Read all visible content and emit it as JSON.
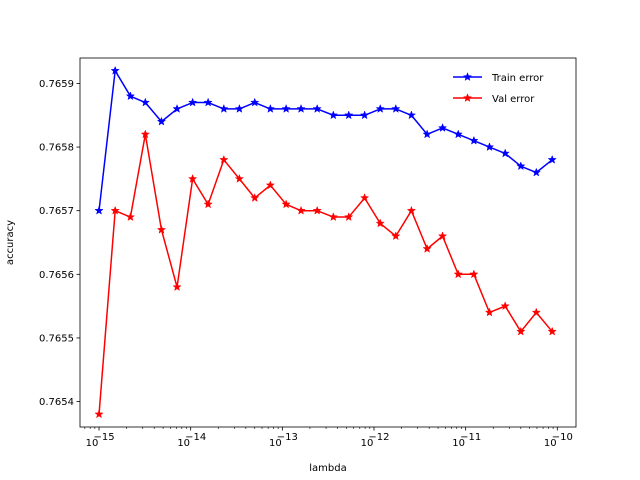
{
  "chart_data": {
    "type": "line",
    "title": "",
    "xlabel": "lambda",
    "ylabel": "accuracy",
    "xscale": "log",
    "xlim": [
      6.2e-16,
      1.6e-10
    ],
    "ylim": [
      0.76536,
      0.76594
    ],
    "xticks": [
      {
        "value": 1e-15,
        "mantissa": "10",
        "exponent": "−15"
      },
      {
        "value": 1e-14,
        "mantissa": "10",
        "exponent": "−14"
      },
      {
        "value": 1e-13,
        "mantissa": "10",
        "exponent": "−13"
      },
      {
        "value": 1e-12,
        "mantissa": "10",
        "exponent": "−12"
      },
      {
        "value": 1e-11,
        "mantissa": "10",
        "exponent": "−11"
      },
      {
        "value": 1e-10,
        "mantissa": "10",
        "exponent": "−10"
      }
    ],
    "yticks": [
      {
        "value": 0.7654,
        "label": "0.7654"
      },
      {
        "value": 0.7655,
        "label": "0.7655"
      },
      {
        "value": 0.7656,
        "label": "0.7656"
      },
      {
        "value": 0.7657,
        "label": "0.7657"
      },
      {
        "value": 0.7658,
        "label": "0.7658"
      },
      {
        "value": 0.7659,
        "label": "0.7659"
      }
    ],
    "grid": false,
    "legend_position": "top-right",
    "x": [
      1e-15,
      1.5e-15,
      2.2e-15,
      3.2e-15,
      4.8e-15,
      7.1e-15,
      1.05e-14,
      1.55e-14,
      2.3e-14,
      3.4e-14,
      5e-14,
      7.4e-14,
      1.1e-13,
      1.6e-13,
      2.4e-13,
      3.6e-13,
      5.3e-13,
      7.9e-13,
      1.17e-12,
      1.73e-12,
      2.56e-12,
      3.8e-12,
      5.6e-12,
      8.3e-12,
      1.23e-11,
      1.82e-11,
      2.7e-11,
      4e-11,
      5.9e-11,
      8.8e-11
    ],
    "series": [
      {
        "name": "Train error",
        "color": "#0000ff",
        "marker": "star",
        "values": [
          0.7657,
          0.76592,
          0.76588,
          0.76587,
          0.76584,
          0.76586,
          0.76587,
          0.76587,
          0.76586,
          0.76586,
          0.76587,
          0.76586,
          0.76586,
          0.76586,
          0.76586,
          0.76585,
          0.76585,
          0.76585,
          0.76586,
          0.76586,
          0.76585,
          0.76582,
          0.76583,
          0.76582,
          0.76581,
          0.7658,
          0.76579,
          0.76577,
          0.76576,
          0.76578
        ]
      },
      {
        "name": "Val error",
        "color": "#ff0000",
        "marker": "star",
        "values": [
          0.76538,
          0.7657,
          0.76569,
          0.76582,
          0.76567,
          0.76558,
          0.76575,
          0.76571,
          0.76578,
          0.76575,
          0.76572,
          0.76574,
          0.76571,
          0.7657,
          0.7657,
          0.76569,
          0.76569,
          0.76572,
          0.76568,
          0.76566,
          0.7657,
          0.76564,
          0.76566,
          0.7656,
          0.7656,
          0.76554,
          0.76555,
          0.76551,
          0.76554,
          0.76551
        ]
      }
    ]
  }
}
